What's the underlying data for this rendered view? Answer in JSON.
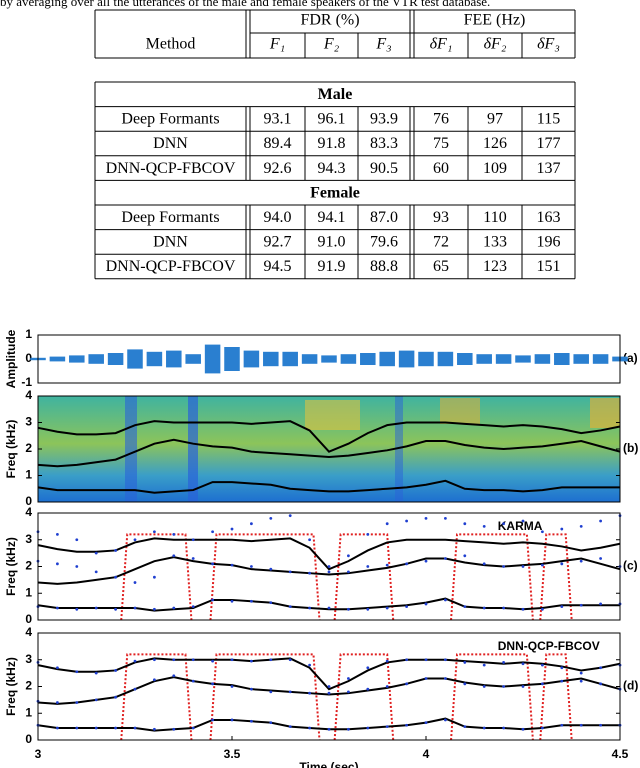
{
  "caption": "by averaging over all the utterances of the male and female speakers of the VTR test database.",
  "table": {
    "header": {
      "method": "Method",
      "fdr": "FDR (%)",
      "fee": "FEE (Hz)",
      "columns": [
        "F₁",
        "F₂",
        "F₃",
        "δF₁",
        "δF₂",
        "δF₃"
      ]
    },
    "groups": [
      {
        "name": "Male",
        "rows": [
          [
            "Deep Formants",
            "93.1",
            "96.1",
            "93.9",
            "76",
            "97",
            "115"
          ],
          [
            "DNN",
            "89.4",
            "91.8",
            "83.3",
            "75",
            "126",
            "177"
          ],
          [
            "DNN-QCP-FBCOV",
            "92.6",
            "94.3",
            "90.5",
            "60",
            "109",
            "137"
          ]
        ]
      },
      {
        "name": "Female",
        "rows": [
          [
            "Deep Formants",
            "94.0",
            "94.1",
            "87.0",
            "93",
            "110",
            "163"
          ],
          [
            "DNN",
            "92.7",
            "91.0",
            "79.6",
            "72",
            "133",
            "196"
          ],
          [
            "DNN-QCP-FBCOV",
            "94.5",
            "91.9",
            "88.8",
            "65",
            "123",
            "151"
          ]
        ]
      }
    ]
  },
  "chart_data": [
    {
      "type": "waveform",
      "panel_label": "(a)",
      "ylabel": "Amplitude",
      "ylim": [
        -1,
        1
      ],
      "yticks": [
        -1,
        0,
        1
      ],
      "xlim": [
        3,
        4.5
      ],
      "x": [
        3,
        3.05,
        3.1,
        3.15,
        3.2,
        3.25,
        3.3,
        3.35,
        3.4,
        3.45,
        3.5,
        3.55,
        3.6,
        3.65,
        3.7,
        3.75,
        3.8,
        3.85,
        3.9,
        3.95,
        4,
        4.05,
        4.1,
        4.15,
        4.2,
        4.25,
        4.3,
        4.35,
        4.4,
        4.45,
        4.5
      ],
      "color": "#2a7fd0",
      "values": [
        0.05,
        0.1,
        0.15,
        0.2,
        0.25,
        0.4,
        0.3,
        0.35,
        0.2,
        0.6,
        0.5,
        0.35,
        0.3,
        0.3,
        0.2,
        0.15,
        0.2,
        0.25,
        0.3,
        0.35,
        0.3,
        0.3,
        0.25,
        0.2,
        0.2,
        0.15,
        0.2,
        0.25,
        0.2,
        0.2,
        0.1
      ]
    },
    {
      "type": "spectrogram",
      "panel_label": "(b)",
      "ylabel": "Freq (kHz)",
      "ylim": [
        0,
        4
      ],
      "yticks": [
        0,
        1,
        2,
        3,
        4
      ],
      "xlim": [
        3,
        4.5
      ],
      "x": [
        3,
        3.05,
        3.1,
        3.15,
        3.2,
        3.25,
        3.3,
        3.35,
        3.4,
        3.45,
        3.5,
        3.55,
        3.6,
        3.65,
        3.7,
        3.75,
        3.8,
        3.85,
        3.9,
        3.95,
        4,
        4.05,
        4.1,
        4.15,
        4.2,
        4.25,
        4.3,
        4.35,
        4.4,
        4.45,
        4.5
      ],
      "series": [
        {
          "color": "#000000",
          "style": "line",
          "values": [
            0.55,
            0.45,
            0.45,
            0.45,
            0.45,
            0.45,
            0.35,
            0.4,
            0.45,
            0.75,
            0.75,
            0.7,
            0.65,
            0.5,
            0.45,
            0.4,
            0.4,
            0.45,
            0.5,
            0.55,
            0.65,
            0.8,
            0.5,
            0.45,
            0.45,
            0.4,
            0.45,
            0.55,
            0.55,
            0.55,
            0.55
          ]
        },
        {
          "color": "#000000",
          "style": "line",
          "values": [
            1.4,
            1.35,
            1.4,
            1.5,
            1.6,
            1.9,
            2.2,
            2.35,
            2.2,
            2.1,
            2.05,
            1.9,
            1.85,
            1.8,
            1.75,
            1.7,
            1.75,
            1.85,
            1.95,
            2.1,
            2.3,
            2.3,
            2.15,
            2.05,
            2.0,
            2.05,
            2.1,
            2.2,
            2.3,
            2.1,
            1.9
          ]
        },
        {
          "color": "#000000",
          "style": "line",
          "values": [
            2.8,
            2.65,
            2.55,
            2.55,
            2.6,
            2.9,
            3.05,
            3.0,
            3.0,
            3.0,
            3.0,
            2.95,
            3.0,
            3.05,
            2.7,
            1.9,
            2.2,
            2.6,
            2.9,
            3.0,
            3.0,
            3.0,
            2.95,
            2.9,
            2.85,
            2.9,
            2.85,
            2.75,
            2.6,
            2.7,
            2.85
          ]
        }
      ]
    },
    {
      "type": "line",
      "panel_label": "(c)",
      "ylabel": "Freq (kHz)",
      "annotation": "KARMA",
      "ylim": [
        0,
        4
      ],
      "yticks": [
        0,
        1,
        2,
        3,
        4
      ],
      "xlim": [
        3,
        4.5
      ],
      "x": [
        3,
        3.05,
        3.1,
        3.15,
        3.2,
        3.25,
        3.3,
        3.35,
        3.4,
        3.45,
        3.5,
        3.55,
        3.6,
        3.65,
        3.7,
        3.75,
        3.8,
        3.85,
        3.9,
        3.95,
        4,
        4.05,
        4.1,
        4.15,
        4.2,
        4.25,
        4.3,
        4.35,
        4.4,
        4.45,
        4.5
      ],
      "voicing_color": "#e02020",
      "voiced_segments": [
        [
          3.23,
          3.38
        ],
        [
          3.46,
          3.71
        ],
        [
          3.78,
          3.9
        ],
        [
          4.08,
          4.26
        ],
        [
          4.31,
          4.36
        ]
      ],
      "series": [
        {
          "color": "#000000",
          "style": "line",
          "values": [
            0.55,
            0.45,
            0.45,
            0.45,
            0.45,
            0.45,
            0.35,
            0.4,
            0.45,
            0.75,
            0.75,
            0.7,
            0.65,
            0.5,
            0.45,
            0.4,
            0.4,
            0.45,
            0.5,
            0.55,
            0.65,
            0.8,
            0.5,
            0.45,
            0.45,
            0.4,
            0.45,
            0.55,
            0.55,
            0.55,
            0.55
          ]
        },
        {
          "color": "#000000",
          "style": "line",
          "values": [
            1.4,
            1.35,
            1.4,
            1.5,
            1.6,
            1.9,
            2.2,
            2.35,
            2.2,
            2.1,
            2.05,
            1.9,
            1.85,
            1.8,
            1.75,
            1.7,
            1.75,
            1.85,
            1.95,
            2.1,
            2.3,
            2.3,
            2.15,
            2.05,
            2.0,
            2.05,
            2.1,
            2.2,
            2.3,
            2.1,
            1.9
          ]
        },
        {
          "color": "#000000",
          "style": "line",
          "values": [
            2.8,
            2.65,
            2.55,
            2.55,
            2.6,
            2.9,
            3.05,
            3.0,
            3.0,
            3.0,
            3.0,
            2.95,
            3.0,
            3.05,
            2.7,
            1.9,
            2.2,
            2.6,
            2.9,
            3.0,
            3.0,
            3.0,
            2.95,
            2.9,
            2.85,
            2.9,
            2.85,
            2.75,
            2.6,
            2.7,
            2.85
          ]
        },
        {
          "color": "#1f3fd0",
          "style": "dots",
          "values": [
            0.5,
            0.45,
            0.4,
            0.45,
            0.4,
            0.45,
            0.4,
            0.45,
            0.5,
            0.75,
            0.7,
            0.7,
            0.65,
            0.5,
            0.45,
            0.45,
            0.4,
            0.4,
            0.45,
            0.5,
            0.6,
            0.75,
            0.5,
            0.45,
            0.45,
            0.4,
            0.4,
            0.5,
            0.55,
            0.6,
            0.6
          ]
        },
        {
          "color": "#1f3fd0",
          "style": "dots",
          "values": [
            2.2,
            2.1,
            2.0,
            1.8,
            1.6,
            1.4,
            1.6,
            2.4,
            2.3,
            2.1,
            2.05,
            2.0,
            1.9,
            1.8,
            1.75,
            1.8,
            1.8,
            2.0,
            2.05,
            2.1,
            2.2,
            2.3,
            2.4,
            2.1,
            2.0,
            2.0,
            2.05,
            2.1,
            2.2,
            2.3,
            2.0
          ]
        },
        {
          "color": "#1f3fd0",
          "style": "dots",
          "values": [
            3.3,
            3.2,
            3.0,
            2.5,
            2.6,
            3.0,
            3.3,
            3.2,
            3.0,
            3.3,
            3.4,
            3.6,
            3.8,
            3.9,
            3.0,
            2.0,
            2.4,
            3.2,
            3.6,
            3.7,
            3.8,
            3.8,
            3.6,
            3.5,
            3.6,
            3.7,
            3.3,
            3.4,
            3.5,
            3.7,
            3.9
          ]
        }
      ]
    },
    {
      "type": "line",
      "panel_label": "(d)",
      "ylabel": "Freq (kHz)",
      "annotation": "DNN-QCP-FBCOV",
      "ylim": [
        0,
        4
      ],
      "yticks": [
        0,
        1,
        2,
        3,
        4
      ],
      "xlim": [
        3,
        4.5
      ],
      "xticks": [
        3,
        3.5,
        4,
        4.5
      ],
      "xlabel": "Time (sec)",
      "x": [
        3,
        3.05,
        3.1,
        3.15,
        3.2,
        3.25,
        3.3,
        3.35,
        3.4,
        3.45,
        3.5,
        3.55,
        3.6,
        3.65,
        3.7,
        3.75,
        3.8,
        3.85,
        3.9,
        3.95,
        4,
        4.05,
        4.1,
        4.15,
        4.2,
        4.25,
        4.3,
        4.35,
        4.4,
        4.45,
        4.5
      ],
      "voicing_color": "#e02020",
      "voiced_segments": [
        [
          3.23,
          3.38
        ],
        [
          3.46,
          3.71
        ],
        [
          3.78,
          3.9
        ],
        [
          4.08,
          4.26
        ],
        [
          4.31,
          4.36
        ]
      ],
      "series": [
        {
          "color": "#000000",
          "style": "line",
          "values": [
            0.55,
            0.45,
            0.45,
            0.45,
            0.45,
            0.45,
            0.35,
            0.4,
            0.45,
            0.75,
            0.75,
            0.7,
            0.65,
            0.5,
            0.45,
            0.4,
            0.4,
            0.45,
            0.5,
            0.55,
            0.65,
            0.8,
            0.5,
            0.45,
            0.45,
            0.4,
            0.45,
            0.55,
            0.55,
            0.55,
            0.55
          ]
        },
        {
          "color": "#000000",
          "style": "line",
          "values": [
            1.4,
            1.35,
            1.4,
            1.5,
            1.6,
            1.9,
            2.2,
            2.35,
            2.2,
            2.1,
            2.05,
            1.9,
            1.85,
            1.8,
            1.75,
            1.7,
            1.75,
            1.85,
            1.95,
            2.1,
            2.3,
            2.3,
            2.15,
            2.05,
            2.0,
            2.05,
            2.1,
            2.2,
            2.3,
            2.1,
            1.9
          ]
        },
        {
          "color": "#000000",
          "style": "line",
          "values": [
            2.8,
            2.65,
            2.55,
            2.55,
            2.6,
            2.9,
            3.05,
            3.0,
            3.0,
            3.0,
            3.0,
            2.95,
            3.0,
            3.05,
            2.7,
            1.9,
            2.2,
            2.6,
            2.9,
            3.0,
            3.0,
            3.0,
            2.95,
            2.9,
            2.85,
            2.9,
            2.85,
            2.75,
            2.6,
            2.7,
            2.85
          ]
        },
        {
          "color": "#1f3fd0",
          "style": "dots",
          "values": [
            0.55,
            0.45,
            0.45,
            0.45,
            0.45,
            0.45,
            0.4,
            0.4,
            0.45,
            0.75,
            0.75,
            0.7,
            0.65,
            0.5,
            0.45,
            0.4,
            0.4,
            0.45,
            0.5,
            0.55,
            0.65,
            0.75,
            0.5,
            0.45,
            0.45,
            0.4,
            0.45,
            0.55,
            0.55,
            0.55,
            0.55
          ]
        },
        {
          "color": "#1f3fd0",
          "style": "dots",
          "values": [
            1.45,
            1.4,
            1.4,
            1.5,
            1.6,
            1.9,
            2.25,
            2.4,
            2.2,
            2.1,
            2.0,
            1.9,
            1.8,
            1.8,
            1.75,
            1.75,
            1.8,
            1.9,
            2.0,
            2.1,
            2.3,
            2.3,
            2.1,
            2.0,
            2.0,
            2.0,
            2.1,
            2.2,
            2.2,
            2.1,
            1.9
          ]
        },
        {
          "color": "#1f3fd0",
          "style": "dots",
          "values": [
            2.9,
            2.7,
            2.55,
            2.5,
            2.6,
            2.95,
            3.0,
            3.0,
            3.0,
            2.95,
            3.0,
            2.95,
            3.0,
            3.0,
            2.8,
            2.0,
            2.3,
            2.7,
            2.95,
            3.0,
            3.0,
            3.0,
            2.9,
            2.8,
            2.9,
            2.85,
            2.8,
            2.7,
            2.5,
            2.7,
            2.8
          ]
        }
      ]
    }
  ]
}
